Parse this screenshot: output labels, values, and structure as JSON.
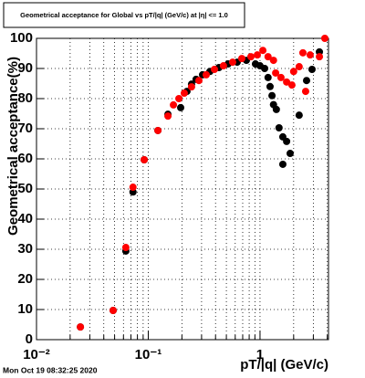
{
  "chart_data": {
    "type": "scatter",
    "title": "Geometrical acceptance for Global vs pT/|q| (GeV/c) at |η| <= 1.0",
    "x_label": "pT/|q| (GeV/c)",
    "y_label": "Geometrical acceptance(%)",
    "timestamp": "Mon Oct 19 08:32:25 2020",
    "xscale": "log",
    "grid": true,
    "xlim": [
      0.01,
      4.1
    ],
    "ylim": [
      0,
      100
    ],
    "xticks": [
      {
        "value": 0.01,
        "label": "10⁻²"
      },
      {
        "value": 0.1,
        "label": "10⁻¹"
      },
      1
    ],
    "xminorticks": [
      0.02,
      0.03,
      0.04,
      0.05,
      0.06,
      0.07,
      0.08,
      0.09,
      0.2,
      0.3,
      0.4,
      0.5,
      0.6,
      0.7,
      0.8,
      0.9,
      2,
      3,
      4
    ],
    "yticks": [
      0,
      10,
      20,
      30,
      40,
      50,
      60,
      70,
      80,
      90,
      100
    ],
    "series": [
      {
        "color": "#000000",
        "x": [
          0.0247,
          0.0485,
          0.063,
          0.073,
          0.092,
          0.122,
          0.15,
          0.195,
          0.222,
          0.244,
          0.268,
          0.306,
          0.356,
          0.429,
          0.518,
          0.625,
          0.755,
          0.91,
          1.0,
          1.1,
          1.18,
          1.23,
          1.28,
          1.32,
          1.4,
          1.48,
          1.6,
          1.73,
          1.86,
          1.6,
          2.24,
          2.61,
          2.92,
          3.4
        ],
        "values": [
          4.2,
          9.7,
          29.4,
          49,
          59.7,
          69.4,
          74.8,
          77,
          82.4,
          84.8,
          86.4,
          87.9,
          89,
          90.3,
          91.5,
          92.1,
          92.7,
          91.5,
          90.9,
          90,
          87,
          84,
          81,
          78,
          76.4,
          70.3,
          67.3,
          65.8,
          61.8,
          58.2,
          74.5,
          86,
          89.7,
          95.5
        ]
      },
      {
        "color": "#ff0000",
        "x": [
          0.0247,
          0.0485,
          0.063,
          0.073,
          0.092,
          0.122,
          0.15,
          0.168,
          0.188,
          0.21,
          0.244,
          0.284,
          0.33,
          0.391,
          0.471,
          0.569,
          0.687,
          0.829,
          0.946,
          1.06,
          1.18,
          1.32,
          1.38,
          1.54,
          1.73,
          1.93,
          2.0,
          2.24,
          2.42,
          2.56,
          2.81,
          3.4,
          3.8
        ],
        "values": [
          4.2,
          9.7,
          30.6,
          50.6,
          59.7,
          69.4,
          74.2,
          77.9,
          80,
          81.8,
          83.9,
          86,
          87.9,
          89.7,
          90.9,
          92.1,
          93.3,
          93.9,
          94.5,
          96,
          93.9,
          92.7,
          88.5,
          87,
          85.5,
          84.5,
          89,
          90.6,
          95.2,
          82.4,
          94.5,
          93.9,
          100
        ]
      }
    ]
  }
}
